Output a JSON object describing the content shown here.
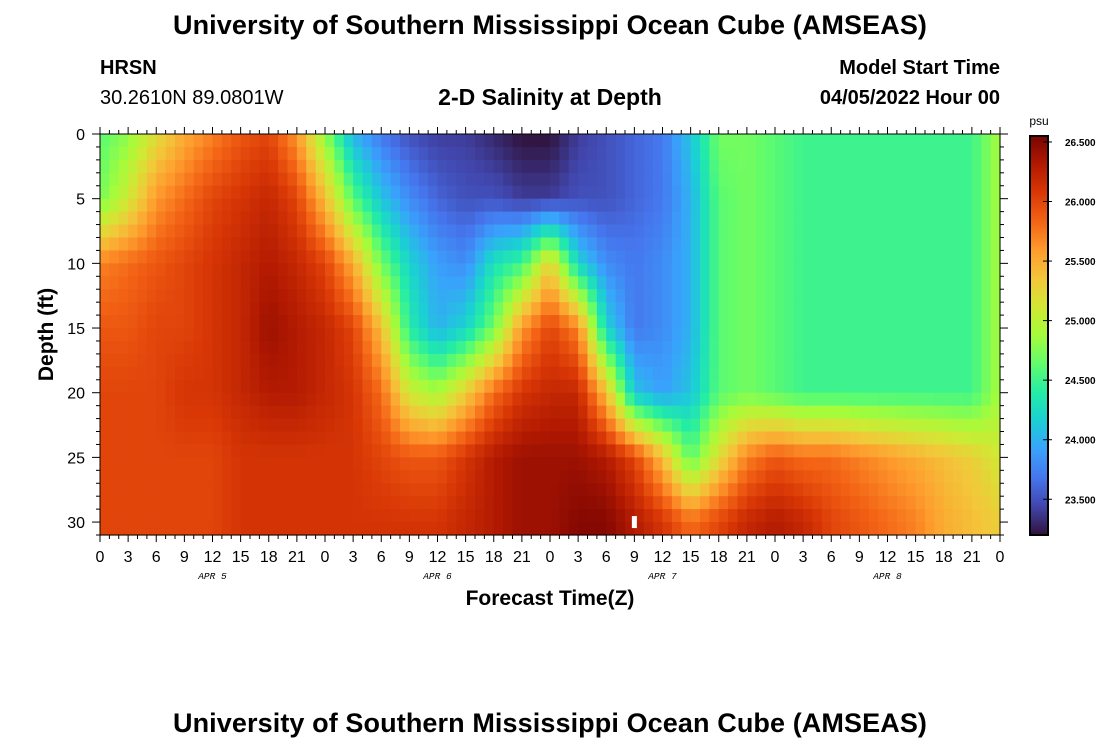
{
  "header": {
    "title": "University of Southern Mississippi Ocean Cube (AMSEAS)",
    "station": "HRSN",
    "coordinates": "30.2610N  89.0801W",
    "subtitle": "2-D Salinity at Depth",
    "model_start_label": "Model Start Time",
    "model_start_value": "04/05/2022 Hour 00"
  },
  "footer": {
    "repeated_title": "University of Southern Mississippi Ocean Cube (AMSEAS)"
  },
  "chart_data": {
    "type": "heatmap",
    "title": "2-D Salinity at Depth",
    "xlabel": "Forecast Time(Z)",
    "ylabel": "Depth (ft)",
    "x_tick_labels": [
      "0",
      "3",
      "6",
      "9",
      "12",
      "15",
      "18",
      "21",
      "0",
      "3",
      "6",
      "9",
      "12",
      "15",
      "18",
      "21",
      "0",
      "3",
      "6",
      "9",
      "12",
      "15",
      "18",
      "21",
      "0",
      "3",
      "6",
      "9",
      "12",
      "15",
      "18",
      "21",
      "0"
    ],
    "date_labels": [
      {
        "label": "APR 5",
        "hour": 12
      },
      {
        "label": "APR 6",
        "hour": 36
      },
      {
        "label": "APR 7",
        "hour": 60
      },
      {
        "label": "APR 8",
        "hour": 84
      }
    ],
    "xlim_hours": [
      0,
      96
    ],
    "ylim_ft": [
      0,
      31
    ],
    "y_ticks": [
      0,
      5,
      10,
      15,
      20,
      25,
      30
    ],
    "colorbar": {
      "unit": "psu",
      "vmin": 23.2,
      "vmax": 26.55,
      "tick_labels": [
        "23.500",
        "24.000",
        "24.500",
        "25.000",
        "25.500",
        "26.000",
        "26.500"
      ],
      "tick_values": [
        23.5,
        24.0,
        24.5,
        25.0,
        25.5,
        26.0,
        26.5
      ],
      "colors": [
        "#30123b",
        "#4145ab",
        "#4675ed",
        "#39a2fc",
        "#1bcfd4",
        "#24eca6",
        "#61fc6c",
        "#a4fc3b",
        "#d1e834",
        "#f3c63a",
        "#fe9b2d",
        "#f36315",
        "#d93806",
        "#b11901",
        "#7a0403"
      ]
    },
    "salinity_psu": {
      "hours": [
        0,
        3,
        6,
        9,
        12,
        15,
        18,
        21,
        24,
        27,
        30,
        33,
        36,
        39,
        42,
        45,
        48,
        51,
        54,
        57,
        60,
        63,
        66,
        69,
        72,
        75,
        78,
        81,
        84,
        87,
        90,
        93,
        96
      ],
      "depths_ft": [
        0,
        5,
        10,
        15,
        20,
        25,
        30
      ],
      "values": [
        [
          24.6,
          24.8,
          25.2,
          25.5,
          25.7,
          25.9,
          26.0,
          25.6,
          24.8,
          24.0,
          23.7,
          23.5,
          23.4,
          23.4,
          23.3,
          23.2,
          23.2,
          23.4,
          23.5,
          23.6,
          23.7,
          24.1,
          24.7,
          24.7,
          24.6,
          24.5,
          24.5,
          24.5,
          24.5,
          24.5,
          24.5,
          24.5,
          24.9
        ],
        [
          24.7,
          25.1,
          25.6,
          25.8,
          26.0,
          26.1,
          26.2,
          26.0,
          25.4,
          24.6,
          24.1,
          23.8,
          23.6,
          23.5,
          23.5,
          23.4,
          23.4,
          23.5,
          23.5,
          23.6,
          23.7,
          24.0,
          24.6,
          24.7,
          24.6,
          24.5,
          24.5,
          24.5,
          24.5,
          24.5,
          24.5,
          24.5,
          24.9
        ],
        [
          25.7,
          25.8,
          25.9,
          26.0,
          26.1,
          26.2,
          26.3,
          26.2,
          26.0,
          25.5,
          24.7,
          24.2,
          23.9,
          23.8,
          24.3,
          24.5,
          25.3,
          24.2,
          23.8,
          23.7,
          23.8,
          24.0,
          24.6,
          24.7,
          24.6,
          24.5,
          24.5,
          24.5,
          24.5,
          24.5,
          24.5,
          24.5,
          24.9
        ],
        [
          25.9,
          25.9,
          26.0,
          26.0,
          26.1,
          26.2,
          26.4,
          26.3,
          26.2,
          26.0,
          25.4,
          24.4,
          24.0,
          24.2,
          24.7,
          25.6,
          26.0,
          25.7,
          24.2,
          23.7,
          23.8,
          24.0,
          24.6,
          24.7,
          24.6,
          24.5,
          24.5,
          24.5,
          24.5,
          24.5,
          24.5,
          24.5,
          24.9
        ],
        [
          26.0,
          26.0,
          26.0,
          26.1,
          26.1,
          26.2,
          26.3,
          26.3,
          26.2,
          26.1,
          25.8,
          25.1,
          24.9,
          25.3,
          25.8,
          26.1,
          26.2,
          26.2,
          25.4,
          24.1,
          23.9,
          24.1,
          24.6,
          24.7,
          24.6,
          24.5,
          24.5,
          24.5,
          24.5,
          24.5,
          24.5,
          24.5,
          24.9
        ],
        [
          26.0,
          26.0,
          26.0,
          26.0,
          26.0,
          26.1,
          26.1,
          26.1,
          26.1,
          26.1,
          26.0,
          25.9,
          25.9,
          26.1,
          26.3,
          26.4,
          26.4,
          26.4,
          26.3,
          26.0,
          25.4,
          24.6,
          25.2,
          25.7,
          25.9,
          25.8,
          25.8,
          25.7,
          25.6,
          25.5,
          25.4,
          25.3,
          25.1
        ],
        [
          26.0,
          26.0,
          26.0,
          26.0,
          26.0,
          26.1,
          26.1,
          26.1,
          26.1,
          26.1,
          26.1,
          26.1,
          26.1,
          26.2,
          26.3,
          26.4,
          26.4,
          26.5,
          26.5,
          26.3,
          26.1,
          25.8,
          26.0,
          26.2,
          26.3,
          26.2,
          26.0,
          25.9,
          25.8,
          25.7,
          25.5,
          25.4,
          25.3
        ]
      ]
    },
    "marker": {
      "hour": 57,
      "depth_ft": 30
    }
  }
}
